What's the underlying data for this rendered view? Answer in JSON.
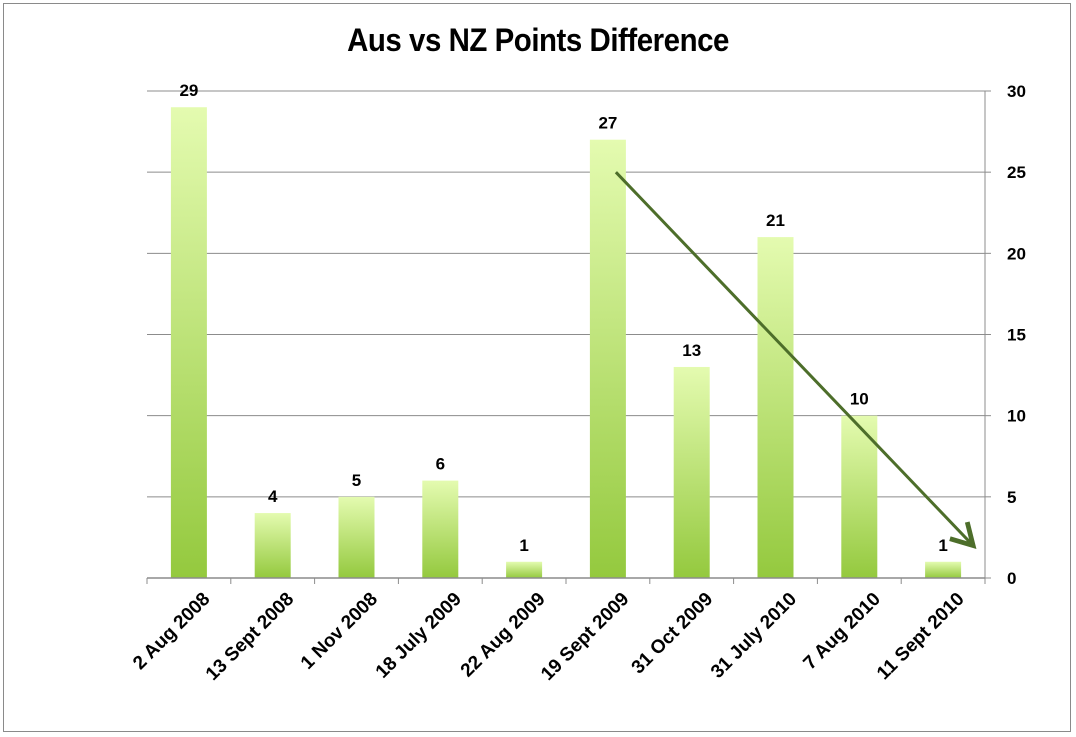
{
  "chart_data": {
    "type": "bar",
    "title": "Aus vs NZ Points Difference",
    "xlabel": "",
    "ylabel": "",
    "categories": [
      "2 Aug 2008",
      "13 Sept 2008",
      "1 Nov 2008",
      "18 July 2009",
      "22 Aug 2009",
      "19 Sept 2009",
      "31 Oct 2009",
      "31 July 2010",
      "7 Aug 2010",
      "11 Sept 2010"
    ],
    "values": [
      29,
      4,
      5,
      6,
      1,
      27,
      13,
      21,
      10,
      1
    ],
    "ylim": [
      0,
      30
    ],
    "yticks": [
      0,
      5,
      10,
      15,
      20,
      25,
      30
    ],
    "y_axis_side": "right",
    "grid": true,
    "legend": "none",
    "data_labels": true,
    "bar_color_top": "#e4fbb0",
    "bar_color_bottom": "#94c93e",
    "trend_arrow": {
      "from": {
        "category": "19 Sept 2009",
        "value": 25
      },
      "to": {
        "category": "11 Sept 2010",
        "value": 2
      },
      "color": "#4d6e2a"
    }
  }
}
